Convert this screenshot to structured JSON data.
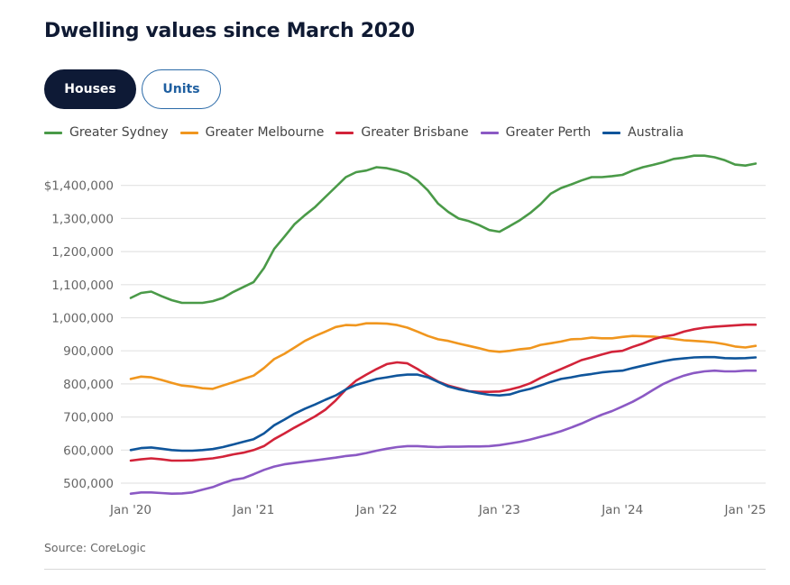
{
  "title": "Dwelling values since March 2020",
  "tabs": [
    {
      "label": "Houses",
      "active": true
    },
    {
      "label": "Units",
      "active": false
    }
  ],
  "source": "Source: CoreLogic",
  "chart_data": {
    "type": "line",
    "title": "Dwelling values since March 2020",
    "xlabel": "",
    "ylabel": "",
    "x_start": "2020-01",
    "x_end": "2025-02",
    "x_frequency": "monthly",
    "x_ticks": [
      "Jan '20",
      "Jan '21",
      "Jan '22",
      "Jan '23",
      "Jan '24",
      "Jan '25"
    ],
    "y_ticks": [
      "500,000",
      "600,000",
      "700,000",
      "800,000",
      "900,000",
      "1,000,000",
      "1,100,000",
      "1,200,000",
      "1,300,000",
      "$1,400,000"
    ],
    "y_tick_values": [
      500000,
      600000,
      700000,
      800000,
      900000,
      1000000,
      1100000,
      1200000,
      1300000,
      1400000
    ],
    "ylim": [
      470000,
      1500000
    ],
    "grid": true,
    "legend_position": "top-left",
    "series": [
      {
        "name": "Greater Sydney",
        "color": "#4a9a48",
        "values": [
          1060000,
          1075000,
          1079000,
          1065000,
          1053000,
          1045000,
          1045000,
          1045000,
          1050000,
          1060000,
          1078000,
          1093000,
          1108000,
          1150000,
          1208000,
          1245000,
          1283000,
          1310000,
          1335000,
          1365000,
          1395000,
          1425000,
          1440000,
          1445000,
          1455000,
          1452000,
          1445000,
          1435000,
          1415000,
          1385000,
          1345000,
          1320000,
          1300000,
          1292000,
          1280000,
          1265000,
          1260000,
          1277000,
          1295000,
          1317000,
          1343000,
          1375000,
          1392000,
          1403000,
          1415000,
          1425000,
          1425000,
          1428000,
          1432000,
          1445000,
          1455000,
          1462000,
          1470000,
          1480000,
          1484000,
          1490000,
          1490000,
          1485000,
          1476000,
          1463000,
          1460000,
          1466000
        ]
      },
      {
        "name": "Greater Melbourne",
        "color": "#f0961e",
        "values": [
          815000,
          822000,
          820000,
          812000,
          803000,
          795000,
          792000,
          787000,
          785000,
          795000,
          805000,
          815000,
          825000,
          848000,
          875000,
          891000,
          910000,
          930000,
          945000,
          958000,
          972000,
          978000,
          977000,
          983000,
          983000,
          982000,
          978000,
          970000,
          958000,
          945000,
          935000,
          930000,
          922000,
          915000,
          908000,
          900000,
          897000,
          900000,
          905000,
          908000,
          918000,
          923000,
          928000,
          935000,
          936000,
          940000,
          938000,
          938000,
          942000,
          945000,
          944000,
          943000,
          940000,
          936000,
          932000,
          930000,
          928000,
          925000,
          920000,
          913000,
          910000,
          915000
        ]
      },
      {
        "name": "Greater Brisbane",
        "color": "#d22339",
        "values": [
          568000,
          572000,
          575000,
          572000,
          568000,
          568000,
          569000,
          572000,
          575000,
          580000,
          587000,
          592000,
          600000,
          612000,
          633000,
          650000,
          668000,
          685000,
          702000,
          722000,
          750000,
          783000,
          810000,
          828000,
          845000,
          860000,
          865000,
          862000,
          845000,
          825000,
          807000,
          795000,
          787000,
          778000,
          776000,
          776000,
          777000,
          783000,
          791000,
          802000,
          818000,
          832000,
          845000,
          858000,
          872000,
          880000,
          889000,
          897000,
          900000,
          912000,
          922000,
          935000,
          943000,
          948000,
          958000,
          965000,
          970000,
          973000,
          975000,
          977000,
          979000,
          979000
        ]
      },
      {
        "name": "Greater Perth",
        "color": "#8b59c4",
        "values": [
          468000,
          472000,
          472000,
          470000,
          468000,
          469000,
          472000,
          480000,
          488000,
          500000,
          510000,
          515000,
          527000,
          540000,
          550000,
          557000,
          561000,
          565000,
          569000,
          573000,
          577000,
          582000,
          585000,
          591000,
          598000,
          604000,
          609000,
          612000,
          612000,
          610000,
          609000,
          610000,
          610000,
          611000,
          611000,
          612000,
          615000,
          620000,
          625000,
          632000,
          640000,
          648000,
          657000,
          668000,
          680000,
          694000,
          707000,
          718000,
          732000,
          746000,
          763000,
          782000,
          800000,
          814000,
          825000,
          833000,
          838000,
          840000,
          838000,
          838000,
          840000,
          840000
        ]
      },
      {
        "name": "Australia",
        "color": "#0f559b",
        "values": [
          600000,
          606000,
          608000,
          604000,
          600000,
          598000,
          598000,
          600000,
          603000,
          609000,
          617000,
          625000,
          633000,
          650000,
          675000,
          692000,
          710000,
          725000,
          738000,
          752000,
          765000,
          783000,
          797000,
          806000,
          815000,
          820000,
          825000,
          828000,
          828000,
          820000,
          806000,
          792000,
          784000,
          778000,
          772000,
          767000,
          765000,
          768000,
          778000,
          785000,
          795000,
          806000,
          815000,
          820000,
          826000,
          830000,
          835000,
          838000,
          840000,
          848000,
          855000,
          862000,
          869000,
          874000,
          877000,
          880000,
          881000,
          881000,
          878000,
          877000,
          878000,
          880000
        ]
      }
    ]
  }
}
